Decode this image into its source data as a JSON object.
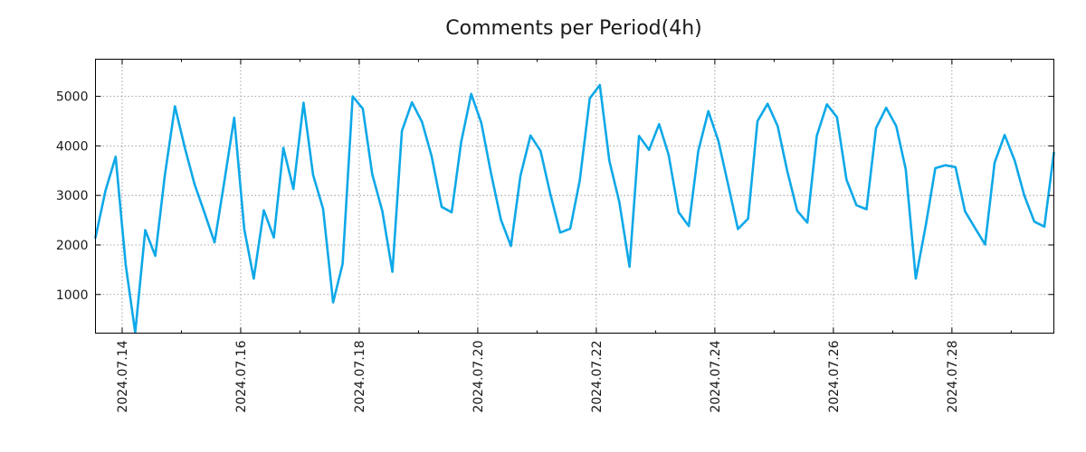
{
  "chart_data": {
    "type": "line",
    "title": "Comments per Period(4h)",
    "xlabel": "",
    "ylabel": "",
    "grid": true,
    "x_unit": "days since 2024-07-14 00:00",
    "xlim": [
      -0.45,
      15.72
    ],
    "ylim": [
      220,
      5750
    ],
    "y_ticks": [
      1000,
      2000,
      3000,
      4000,
      5000
    ],
    "y_tick_labels": [
      "1000",
      "2000",
      "3000",
      "4000",
      "5000"
    ],
    "x_ticks": [
      0,
      2,
      4,
      6,
      8,
      10,
      12,
      14
    ],
    "x_tick_labels": [
      "2024.07.14",
      "2024.07.16",
      "2024.07.18",
      "2024.07.20",
      "2024.07.22",
      "2024.07.24",
      "2024.07.26",
      "2024.07.28"
    ],
    "series": [
      {
        "name": "Comments",
        "color": "#0ea8e8",
        "x": [
          -0.45,
          -0.28,
          -0.11,
          0.06,
          0.22,
          0.39,
          0.56,
          0.72,
          0.89,
          1.06,
          1.22,
          1.39,
          1.56,
          1.72,
          1.89,
          2.06,
          2.22,
          2.39,
          2.56,
          2.72,
          2.89,
          3.06,
          3.22,
          3.39,
          3.56,
          3.72,
          3.89,
          4.06,
          4.22,
          4.39,
          4.56,
          4.72,
          4.89,
          5.06,
          5.22,
          5.39,
          5.56,
          5.72,
          5.89,
          6.06,
          6.22,
          6.39,
          6.56,
          6.72,
          6.89,
          7.06,
          7.22,
          7.39,
          7.56,
          7.72,
          7.89,
          8.06,
          8.22,
          8.39,
          8.56,
          8.72,
          8.89,
          9.06,
          9.22,
          9.39,
          9.56,
          9.72,
          9.89,
          10.06,
          10.22,
          10.39,
          10.56,
          10.72,
          10.89,
          11.06,
          11.22,
          11.39,
          11.56,
          11.72,
          11.89,
          12.06,
          12.22,
          12.39,
          12.56,
          12.72,
          12.89,
          13.06,
          13.22,
          13.39,
          13.56,
          13.72,
          13.89,
          14.06,
          14.22,
          14.39,
          14.56,
          14.72,
          14.89,
          15.06,
          15.22,
          15.39,
          15.56,
          15.72
        ],
        "values": [
          2150,
          3100,
          3780,
          1600,
          230,
          2300,
          1780,
          3400,
          4800,
          3950,
          3230,
          2650,
          2050,
          3250,
          4570,
          2320,
          1320,
          2700,
          2150,
          3960,
          3130,
          4870,
          3420,
          2730,
          840,
          1620,
          5000,
          4750,
          3430,
          2680,
          1460,
          4300,
          4880,
          4480,
          3800,
          2770,
          2660,
          4080,
          5050,
          4460,
          3470,
          2510,
          1980,
          3400,
          4210,
          3900,
          3050,
          2250,
          2330,
          3300,
          4960,
          5230,
          3700,
          2860,
          1560,
          4200,
          3920,
          4440,
          3820,
          2660,
          2380,
          3900,
          4700,
          4100,
          3240,
          2320,
          2530,
          4500,
          4850,
          4400,
          3500,
          2690,
          2450,
          4200,
          4840,
          4580,
          3320,
          2800,
          2720,
          4360,
          4770,
          4400,
          3530,
          1320,
          2400,
          3550,
          3610,
          3570,
          2680,
          2340,
          2010,
          3660,
          4220,
          3700,
          3000,
          2470,
          2370,
          3860
        ]
      }
    ]
  }
}
